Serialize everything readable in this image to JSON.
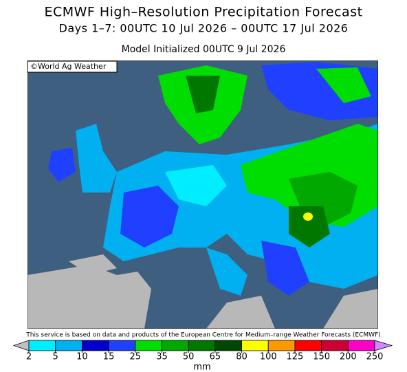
{
  "header": {
    "title": "ECMWF High–Resolution Precipitation Forecast",
    "subtitle": "Days 1–7: 00UTC 10 Jul 2026 – 00UTC 17 Jul 2026",
    "initialized": "Model Initialized 00UTC 9 Jul 2026"
  },
  "credit": "©World Ag Weather",
  "disclaimer": "This service is based on data and products of the European Centre for Medium–range Weather Forecasts (ECMWF)",
  "legend": {
    "unit": "mm",
    "ticks": [
      2,
      5,
      10,
      15,
      25,
      35,
      50,
      65,
      80,
      100,
      125,
      150,
      200,
      250
    ],
    "colors": [
      "#c0c0c0",
      "#00eeff",
      "#00b0f0",
      "#0000cc",
      "#2040ff",
      "#00dd00",
      "#00a800",
      "#007800",
      "#004800",
      "#ffff00",
      "#ff9900",
      "#ff0000",
      "#cc0033",
      "#ff00cc",
      "#9933cc",
      "#cc88ff"
    ]
  }
}
